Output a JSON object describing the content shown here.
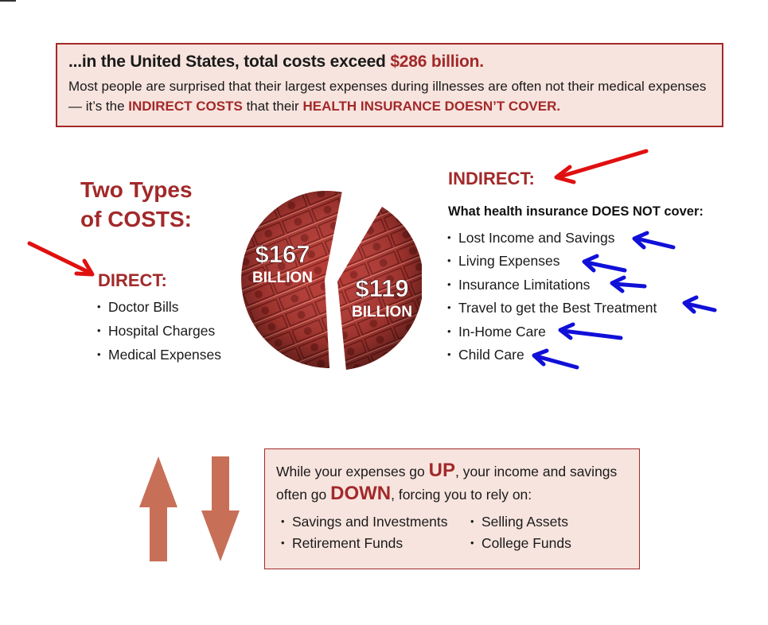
{
  "header": {
    "headline_prefix": "...in the United States, total costs exceed ",
    "headline_amount": "$286 billion.",
    "body_part1": "Most people are surprised that their largest expenses during illnesses are often not their medical expenses — it’s the ",
    "body_highlight1": "INDIRECT COSTS",
    "body_part2": " that their ",
    "body_highlight2": "HEALTH INSURANCE DOESN’T COVER."
  },
  "types": {
    "line1": "Two Types",
    "line2": "of COSTS:"
  },
  "pie": {
    "direct_amount": "$167",
    "direct_unit": "BILLION",
    "indirect_amount": "$119",
    "indirect_unit": "BILLION"
  },
  "direct": {
    "title": "DIRECT:",
    "items": [
      "Doctor Bills",
      "Hospital Charges",
      "Medical Expenses"
    ]
  },
  "indirect": {
    "title": "INDIRECT:",
    "subtitle": "What health insurance DOES NOT cover:",
    "items": [
      "Lost Income and Savings",
      "Living Expenses",
      "Insurance Limitations",
      "Travel to get the Best Treatment",
      "In-Home Care",
      "Child Care"
    ]
  },
  "bottom": {
    "text_part1": "While your expenses go ",
    "up": "UP",
    "text_part2": ", your income and savings often go ",
    "down": "DOWN",
    "text_part3": ", forcing you to rely on:",
    "col1": [
      "Savings and Investments",
      "Retirement Funds"
    ],
    "col2": [
      "Selling Assets",
      "College Funds"
    ]
  },
  "colors": {
    "accent_red": "#a2292a",
    "box_fill": "#f7e4de",
    "arrow_fill": "#c86f58",
    "pointer_red": "#e01010",
    "pointer_blue": "#1010d8"
  }
}
